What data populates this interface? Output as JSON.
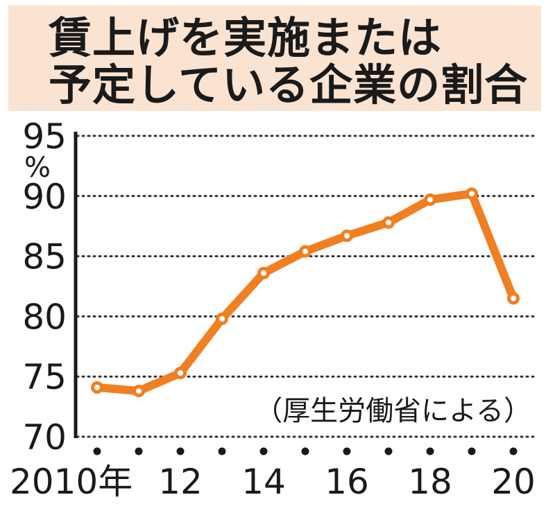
{
  "chart_data": {
    "type": "line",
    "title_lines": [
      "賃上げを実施または",
      "予定している企業の割合"
    ],
    "ylabel": "%",
    "source": "（厚生労働省による）",
    "ylim": [
      70,
      95
    ],
    "yticks": [
      70,
      75,
      80,
      85,
      90,
      95
    ],
    "y_tick_labels": [
      "70",
      "75",
      "80",
      "85",
      "90",
      "95"
    ],
    "x": [
      2010,
      2011,
      2012,
      2013,
      2014,
      2015,
      2016,
      2017,
      2018,
      2019,
      2020
    ],
    "x_tick_labels": [
      {
        "x": 2010,
        "label": "2010年"
      },
      {
        "x": 2012,
        "label": "12"
      },
      {
        "x": 2014,
        "label": "14"
      },
      {
        "x": 2016,
        "label": "16"
      },
      {
        "x": 2018,
        "label": "18"
      },
      {
        "x": 2020,
        "label": "20"
      }
    ],
    "series": [
      {
        "values": [
          74.1,
          73.8,
          75.3,
          79.8,
          83.6,
          85.4,
          86.7,
          87.8,
          89.7,
          90.2,
          81.5
        ]
      }
    ],
    "grid": "horizontal dotted",
    "colors": {
      "line": "#f07f22",
      "marker_fill": "#ffffff",
      "title_background": "#fbe3d2",
      "grid": "#333333",
      "text": "#1a1a1a"
    }
  }
}
